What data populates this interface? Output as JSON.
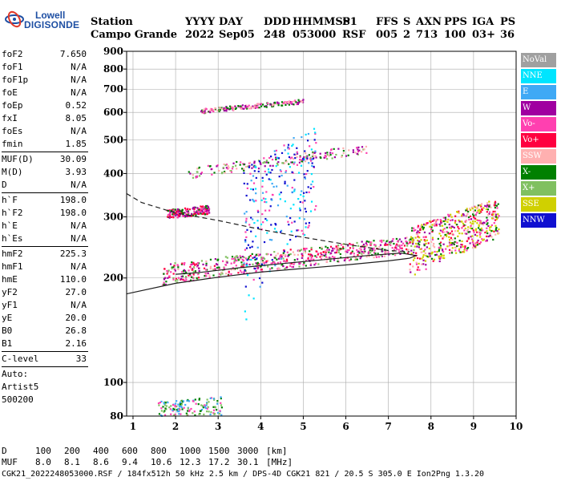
{
  "logo": {
    "line1": "Lowell",
    "line2": "DIGISONDE"
  },
  "header": {
    "labels": [
      "Station",
      "YYYY",
      "DAY",
      "DDD",
      "HHMMSS",
      "P1",
      "FFS",
      "S",
      "AXN",
      "PPS",
      "IGA",
      "PS"
    ],
    "values": [
      "Campo Grande",
      "2022",
      "Sep05",
      "248",
      "053000",
      "RSF",
      "005",
      "2",
      "713",
      "100",
      "03+",
      "36"
    ]
  },
  "params": [
    {
      "label": "foF2",
      "value": "7.650"
    },
    {
      "label": "foF1",
      "value": "N/A"
    },
    {
      "label": "foF1p",
      "value": "N/A"
    },
    {
      "label": "foE",
      "value": "N/A"
    },
    {
      "label": "foEp",
      "value": "0.52"
    },
    {
      "label": "fxI",
      "value": "8.05"
    },
    {
      "label": "foEs",
      "value": "N/A"
    },
    {
      "label": "fmin",
      "value": "1.85"
    },
    {
      "sep": true
    },
    {
      "label": "MUF(D)",
      "value": "30.09"
    },
    {
      "label": "M(D)",
      "value": "3.93"
    },
    {
      "label": "D",
      "value": "N/A"
    },
    {
      "sep": true
    },
    {
      "label": "h`F",
      "value": "198.0"
    },
    {
      "label": "h`F2",
      "value": "198.0"
    },
    {
      "label": "h`E",
      "value": "N/A"
    },
    {
      "label": "h`Es",
      "value": "N/A"
    },
    {
      "sep": true
    },
    {
      "label": "hmF2",
      "value": "225.3"
    },
    {
      "label": "hmF1",
      "value": "N/A"
    },
    {
      "label": "hmE",
      "value": "110.0"
    },
    {
      "label": "yF2",
      "value": "27.0"
    },
    {
      "label": "yF1",
      "value": "N/A"
    },
    {
      "label": "yE",
      "value": "20.0"
    },
    {
      "label": "B0",
      "value": "26.8"
    },
    {
      "label": "B1",
      "value": "2.16"
    },
    {
      "sep": true
    },
    {
      "label": "C-level",
      "value": "33"
    },
    {
      "sep": true
    },
    {
      "label": "Auto:",
      "value": ""
    },
    {
      "label": "Artist5",
      "value": ""
    },
    {
      "label": "500200",
      "value": ""
    }
  ],
  "legend": [
    {
      "label": "NoVal",
      "color": "#a0a0a0",
      "text_color": "#ffffff"
    },
    {
      "label": "NNE",
      "color": "#00e5ff",
      "text_color": "#ffffff"
    },
    {
      "label": "E",
      "color": "#3fa9f5",
      "text_color": "#ffffff"
    },
    {
      "label": "W",
      "color": "#a000a0",
      "text_color": "#ffffff"
    },
    {
      "label": "Vo-",
      "color": "#ff40b0",
      "text_color": "#ffffff"
    },
    {
      "label": "Vo+",
      "color": "#ff0040",
      "text_color": "#ffffff"
    },
    {
      "label": "SSW",
      "color": "#ffb0b0",
      "text_color": "#ffffff"
    },
    {
      "label": "X-",
      "color": "#008000",
      "text_color": "#ffffff"
    },
    {
      "label": "X+",
      "color": "#80c060",
      "text_color": "#ffffff"
    },
    {
      "label": "SSE",
      "color": "#d0d000",
      "text_color": "#ffffff"
    },
    {
      "label": "NNW",
      "color": "#1010d0",
      "text_color": "#ffffff"
    }
  ],
  "footer": {
    "row1_label": "D",
    "row1_values": [
      "100",
      "200",
      "400",
      "600",
      "800",
      "1000",
      "1500",
      "3000",
      "[km]"
    ],
    "row2_label": "MUF",
    "row2_values": [
      "8.0",
      "8.1",
      "8.6",
      "9.4",
      "10.6",
      "12.3",
      "17.2",
      "30.1",
      "[MHz]"
    ],
    "file_line": "CGK21_2022248053000.RSF / 184fx512h 50 kHz 2.5 km / DPS-4D CGK21 821 / 20.5 S 305.0 E Ion2Png 1.3.20"
  },
  "chart_data": {
    "type": "scatter",
    "title": "",
    "xlabel": "",
    "ylabel": "",
    "xlim": [
      0.85,
      10
    ],
    "ylim": [
      80,
      900
    ],
    "y_scale": "log",
    "grid": true,
    "x_ticks": [
      "1",
      "2",
      "3",
      "4",
      "5",
      "6",
      "7",
      "8",
      "9",
      "10"
    ],
    "y_ticks": [
      "80",
      "100",
      "200",
      "300",
      "400",
      "500",
      "600",
      "700",
      "800",
      "900"
    ],
    "traces": [
      {
        "name": "",
        "style": "dashed",
        "points": [
          [
            0.85,
            350
          ],
          [
            1.2,
            330
          ],
          [
            2.0,
            308
          ],
          [
            3.0,
            293
          ],
          [
            4.0,
            276
          ],
          [
            5.0,
            262
          ],
          [
            6.0,
            250
          ],
          [
            7.0,
            240
          ],
          [
            7.5,
            238
          ]
        ]
      },
      {
        "name": "",
        "style": "solid",
        "points": [
          [
            0.85,
            180
          ],
          [
            2.0,
            193
          ],
          [
            3.0,
            201
          ],
          [
            4.0,
            208
          ],
          [
            5.0,
            213
          ],
          [
            6.0,
            218
          ],
          [
            7.0,
            224
          ],
          [
            7.5,
            228
          ],
          [
            7.65,
            232
          ],
          [
            7.3,
            236
          ],
          [
            6.5,
            232
          ],
          [
            5.5,
            226
          ],
          [
            4.5,
            220
          ],
          [
            3.5,
            214
          ],
          [
            2.5,
            207
          ],
          [
            2.0,
            205
          ]
        ]
      }
    ],
    "echo_clusters": [
      {
        "trace": "F2 low-order trace",
        "x": [
          1.7,
          7.6
        ],
        "y": [
          205,
          250
        ],
        "spread": [
          0,
          10
        ]
      },
      {
        "trace": "F2 cusp",
        "x": [
          7.5,
          9.6
        ],
        "y": [
          240,
          300
        ],
        "spread": [
          0,
          35
        ]
      },
      {
        "trace": "F2 second-hop",
        "x": [
          2.3,
          6.5
        ],
        "y": [
          400,
          470
        ],
        "spread": [
          0,
          10
        ]
      },
      {
        "trace": "F2 third-hop",
        "x": [
          2.6,
          5.0
        ],
        "y": [
          605,
          645
        ],
        "spread": [
          0,
          5
        ]
      },
      {
        "trace": "spread echoes",
        "x": [
          3.6,
          5.3
        ],
        "y": [
          280,
          420
        ],
        "spread": [
          0,
          130
        ]
      },
      {
        "trace": "E-region",
        "x": [
          1.6,
          3.1
        ],
        "y": [
          82,
          85
        ],
        "spread": [
          0,
          2
        ]
      },
      {
        "trace": "Es patch",
        "x": [
          1.8,
          2.8
        ],
        "y": [
          305,
          315
        ],
        "spread": [
          0,
          5
        ]
      }
    ]
  }
}
